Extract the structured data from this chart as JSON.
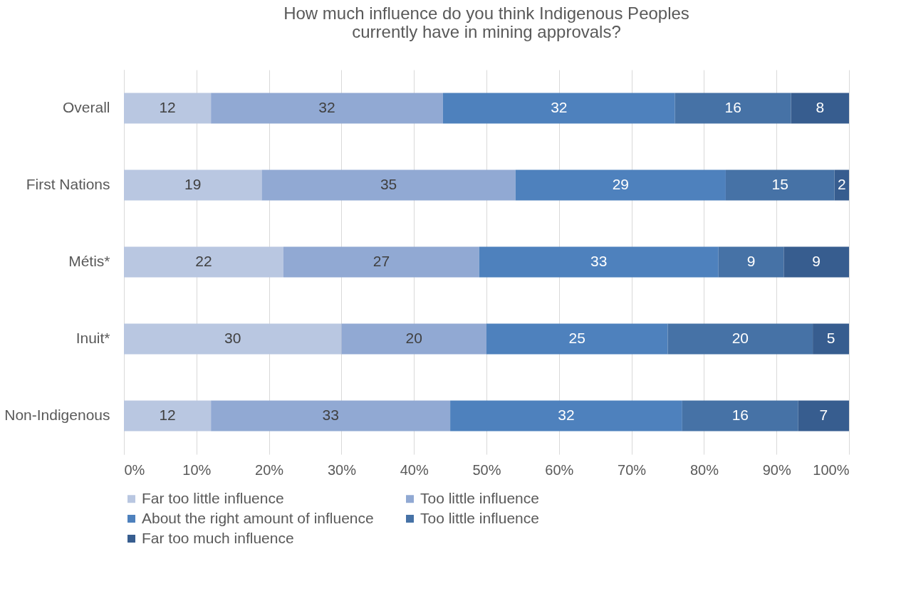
{
  "chart_data": {
    "type": "bar",
    "orientation": "horizontal",
    "stacked": true,
    "title": "How much influence do you think Indigenous Peoples\ncurrently have in mining approvals?",
    "categories": [
      "Overall",
      "First Nations",
      "Métis*",
      "Inuit*",
      "Non-Indigenous"
    ],
    "series": [
      {
        "name": "Far too little influence",
        "color": "#b9c7e1",
        "values": [
          12,
          19,
          22,
          30,
          12
        ]
      },
      {
        "name": "Too little influence",
        "color": "#91a9d3",
        "values": [
          32,
          35,
          27,
          20,
          33
        ]
      },
      {
        "name": "About the right amount of influence",
        "color": "#4e81bd",
        "values": [
          32,
          29,
          33,
          25,
          32
        ]
      },
      {
        "name": "Too little influence",
        "color": "#4672a6",
        "values": [
          16,
          15,
          9,
          20,
          16
        ]
      },
      {
        "name": "Far too much influence",
        "color": "#375d8f",
        "values": [
          8,
          2,
          9,
          5,
          7
        ]
      }
    ],
    "xlim": [
      0,
      100
    ],
    "xticks": [
      {
        "value": 0,
        "label": "0%"
      },
      {
        "value": 10,
        "label": "10%"
      },
      {
        "value": 20,
        "label": "20%"
      },
      {
        "value": 30,
        "label": "30%"
      },
      {
        "value": 40,
        "label": "40%"
      },
      {
        "value": 50,
        "label": "50%"
      },
      {
        "value": 60,
        "label": "60%"
      },
      {
        "value": 70,
        "label": "70%"
      },
      {
        "value": 80,
        "label": "80%"
      },
      {
        "value": 90,
        "label": "90%"
      },
      {
        "value": 100,
        "label": "100%"
      }
    ],
    "grid": "x",
    "legend": "bottom",
    "data_labels": true
  }
}
